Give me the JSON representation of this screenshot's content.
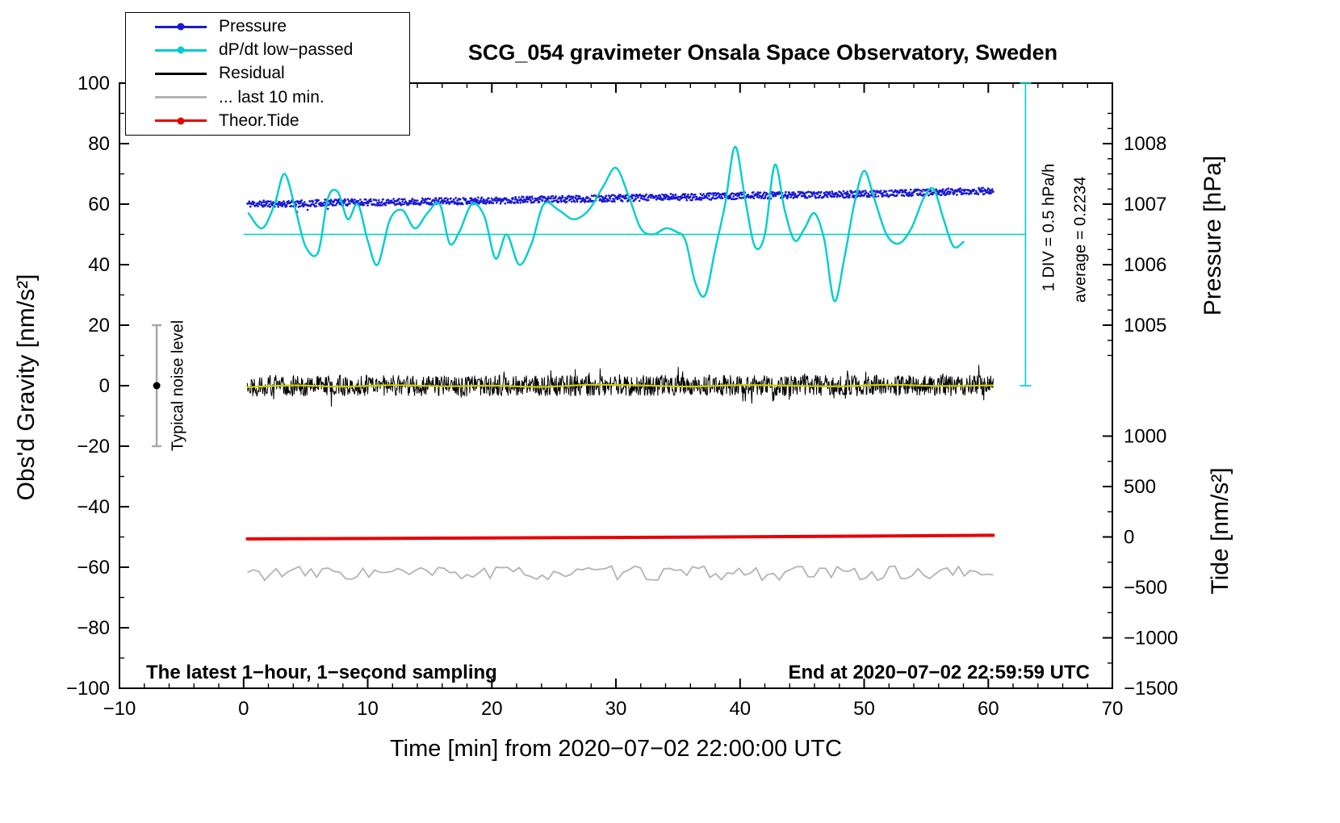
{
  "title": "SCG_054 gravimeter Onsala Space Observatory, Sweden",
  "legend": {
    "items": [
      {
        "label": "Pressure",
        "color": "#1a1ad1",
        "marker": "line-dot"
      },
      {
        "label": "dP/dt low−passed",
        "color": "#00cdcd",
        "marker": "line-dot"
      },
      {
        "label": "Residual",
        "color": "#000000",
        "marker": "line"
      },
      {
        "label": "... last 10 min.",
        "color": "#b3b3b3",
        "marker": "line"
      },
      {
        "label": "Theor.Tide",
        "color": "#e80000",
        "marker": "line-dot"
      }
    ]
  },
  "annotations": {
    "pressure_scale_note": "1 DIV = 0.5 hPa/h",
    "average_note": "average = 0.2234",
    "noise_label": "Typical noise level",
    "footer_left": "The latest 1−hour, 1−second sampling",
    "footer_right": "End at 2020−07−02 22:59:59 UTC"
  },
  "chart_data": {
    "type": "line",
    "title": "SCG_054 gravimeter Onsala Space Observatory, Sweden",
    "x_axis": {
      "label": "Time [min] from 2020−07−02 22:00:00 UTC",
      "range": [
        -10,
        70
      ],
      "major_tick": 10,
      "minor_tick": 2
    },
    "y_left": {
      "label": "Obs'd Gravity [nm/s²]",
      "range": [
        -100,
        100
      ],
      "major_tick": 20,
      "minor_tick": 10
    },
    "y_right_pressure": {
      "label": "Pressure [hPa]",
      "major_ticks": [
        1005,
        1006,
        1007,
        1008
      ],
      "minor_tick": 0.25,
      "tick_span": [
        1004.5,
        1008.5
      ],
      "gravity_at_1007": 60,
      "gravity_per_hPa": 20
    },
    "y_right_tide": {
      "label": "Tide [nm/s²]",
      "major_ticks": [
        -1500,
        -1000,
        -500,
        0,
        500,
        1000
      ],
      "minor_tick": 250,
      "tick_span": [
        -1500,
        1200
      ],
      "gravity_at_0": -50,
      "tide_per_gravity": 30
    },
    "series": [
      {
        "name": "Pressure",
        "color": "#1a1ad1",
        "style": "dots",
        "axis": "pressure_hPa",
        "seed": 11,
        "n_points": 1500,
        "noise_nms2": 1.1,
        "trend_points": [
          [
            0.3,
            1007.005
          ],
          [
            5,
            1007.01
          ],
          [
            8,
            1007.03
          ],
          [
            12,
            1007.035
          ],
          [
            16,
            1007.05
          ],
          [
            20,
            1007.06
          ],
          [
            24,
            1007.075
          ],
          [
            28,
            1007.09
          ],
          [
            32,
            1007.105
          ],
          [
            36,
            1007.12
          ],
          [
            40,
            1007.14
          ],
          [
            44,
            1007.15
          ],
          [
            48,
            1007.16
          ],
          [
            52,
            1007.175
          ],
          [
            56,
            1007.2
          ],
          [
            60.4,
            1007.22
          ]
        ],
        "outliers": {
          "x_range": [
            3,
            7
          ],
          "prob": 0.05,
          "extra_drop_nms2": [
            2,
            5
          ]
        }
      },
      {
        "name": "dP/dt low−passed",
        "color": "#00cdcd",
        "style": "smooth-line",
        "width": 2.4,
        "axis": "gravity_nms2",
        "average_hPa_per_h": 0.2234,
        "div_scale": "1 DIV = 0.5 hPa/h",
        "points": [
          [
            0.4,
            57
          ],
          [
            1.5,
            52
          ],
          [
            2.5,
            60
          ],
          [
            3.3,
            70
          ],
          [
            4.2,
            58
          ],
          [
            5,
            46
          ],
          [
            6,
            44
          ],
          [
            6.8,
            62
          ],
          [
            7.6,
            64
          ],
          [
            8.4,
            55
          ],
          [
            9.2,
            60
          ],
          [
            10,
            48
          ],
          [
            10.8,
            40
          ],
          [
            11.8,
            55
          ],
          [
            12.8,
            58
          ],
          [
            13.8,
            52
          ],
          [
            14.8,
            57
          ],
          [
            15.8,
            60
          ],
          [
            16.6,
            47
          ],
          [
            17.4,
            51
          ],
          [
            18.4,
            60
          ],
          [
            19.4,
            56
          ],
          [
            20.3,
            42
          ],
          [
            21.2,
            50
          ],
          [
            22.2,
            40
          ],
          [
            23.2,
            47
          ],
          [
            24.2,
            60
          ],
          [
            25.4,
            58
          ],
          [
            26.6,
            55
          ],
          [
            27.8,
            58
          ],
          [
            29,
            66
          ],
          [
            30,
            72
          ],
          [
            31,
            63
          ],
          [
            32,
            52
          ],
          [
            33,
            50
          ],
          [
            34,
            52
          ],
          [
            34.8,
            51
          ],
          [
            35.6,
            48
          ],
          [
            36.4,
            34
          ],
          [
            37.2,
            30
          ],
          [
            38,
            45
          ],
          [
            38.8,
            60
          ],
          [
            39.6,
            79
          ],
          [
            40.4,
            62
          ],
          [
            41.2,
            46
          ],
          [
            42,
            50
          ],
          [
            42.8,
            73
          ],
          [
            43.6,
            58
          ],
          [
            44.4,
            48
          ],
          [
            45.2,
            52
          ],
          [
            46,
            57
          ],
          [
            46.8,
            48
          ],
          [
            47.6,
            28
          ],
          [
            48.4,
            42
          ],
          [
            49.2,
            60
          ],
          [
            50,
            71
          ],
          [
            50.8,
            62
          ],
          [
            51.8,
            50
          ],
          [
            52.8,
            47
          ],
          [
            53.8,
            52
          ],
          [
            54.8,
            62
          ],
          [
            55.6,
            65
          ],
          [
            56.4,
            55
          ],
          [
            57.2,
            46
          ],
          [
            58,
            47.5
          ]
        ]
      },
      {
        "name": "Residual",
        "color": "#000000",
        "style": "noisy-line",
        "width": 1,
        "axis": "gravity_nms2",
        "seed": 22,
        "baseline": 0,
        "noise_amp": 3.5,
        "spike_prob": 0.04,
        "x_range": [
          0.3,
          60.4
        ],
        "n_points": 1500
      },
      {
        "name": "Residual low-passed",
        "color": "#cdcd00",
        "style": "smooth-line",
        "width": 2.2,
        "axis": "gravity_nms2",
        "points": [
          [
            0.3,
            -0.5
          ],
          [
            4,
            0.1
          ],
          [
            8,
            -0.3
          ],
          [
            12,
            0.2
          ],
          [
            16,
            -0.2
          ],
          [
            20,
            0.0
          ],
          [
            24,
            -0.4
          ],
          [
            28,
            0.3
          ],
          [
            32,
            0.1
          ],
          [
            36,
            -0.3
          ],
          [
            40,
            0.2
          ],
          [
            44,
            0.0
          ],
          [
            48,
            -0.2
          ],
          [
            52,
            0.3
          ],
          [
            56,
            -0.1
          ],
          [
            60.4,
            0.1
          ]
        ]
      },
      {
        "name": "... last 10 min.",
        "color": "#b3b3b3",
        "style": "noisy-line",
        "width": 1.8,
        "axis": "gravity_nms2",
        "seed": 33,
        "baseline": -62,
        "noise_amp": 2.4,
        "spike_prob": 0,
        "x_range": [
          0.3,
          60.4
        ],
        "n_points": 130
      },
      {
        "name": "Theor.Tide",
        "color": "#e80000",
        "style": "smooth-line",
        "width": 4,
        "axis": "gravity_nms2",
        "tide_axis_values_approx": [
          -18,
          18
        ],
        "points": [
          [
            0.3,
            -50.65
          ],
          [
            15,
            -50.4
          ],
          [
            30,
            -50.15
          ],
          [
            45,
            -49.85
          ],
          [
            60.4,
            -49.45
          ]
        ]
      }
    ],
    "extras": {
      "average_line": {
        "gravity": 50,
        "x_range": [
          0,
          63
        ],
        "color": "#00cdcd"
      },
      "pressure_scalebar": {
        "x_min": 63,
        "gravity_range": [
          0,
          100
        ],
        "color": "#00cdcd"
      },
      "noise_marker": {
        "x_min": -7,
        "center_gravity": 0,
        "half_span": 20,
        "bar_color": "#a8a8a8",
        "dot_color": "#000000"
      }
    }
  }
}
